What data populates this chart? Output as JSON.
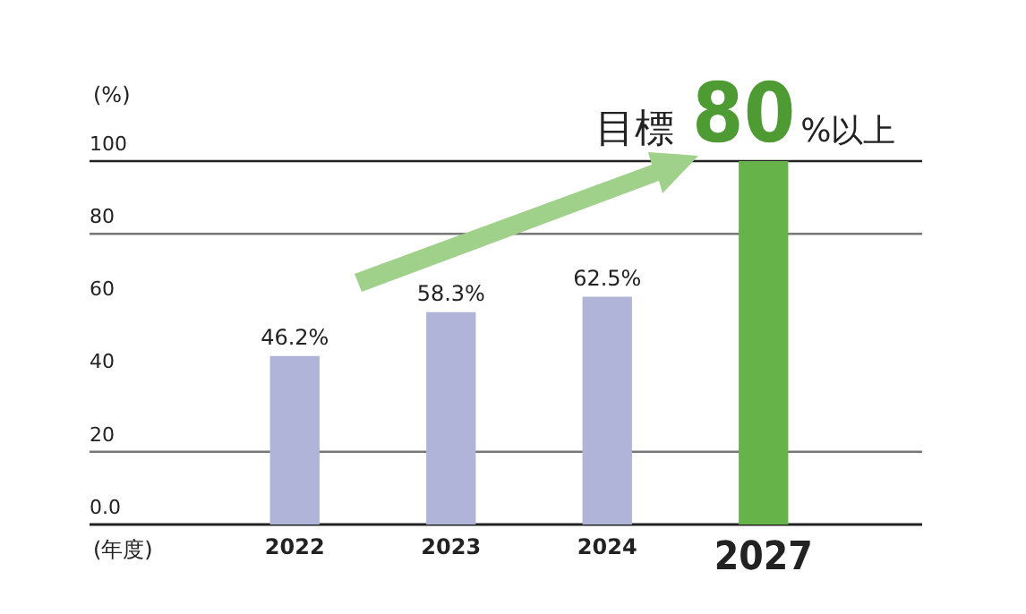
{
  "chart_data": {
    "type": "bar",
    "xlabel": "(年度)",
    "ylabel": "(%)",
    "categories": [
      "2022",
      "2023",
      "2024",
      "2027"
    ],
    "values": [
      46.2,
      58.3,
      62.5,
      100
    ],
    "colors": [
      "#b0b4d8",
      "#b0b4d8",
      "#b0b4d8",
      "#66b34a"
    ],
    "value_labels": [
      "46.2%",
      "58.3%",
      "62.5%",
      null
    ],
    "ylim": [
      0,
      100
    ],
    "yticks": [
      {
        "value": 0,
        "label": "0.0"
      },
      20,
      40,
      60,
      80,
      100
    ],
    "grid": false,
    "legend": false,
    "ref_lines": [
      {
        "axis": "y",
        "value": 20,
        "color": "#777777"
      },
      {
        "axis": "y",
        "value": 80,
        "color": "#777777"
      },
      {
        "axis": "y",
        "value": 100,
        "color": "#222222"
      }
    ],
    "annotations": [
      {
        "text": "目標 80%以上",
        "x": "2027",
        "y": 100
      }
    ]
  }
}
